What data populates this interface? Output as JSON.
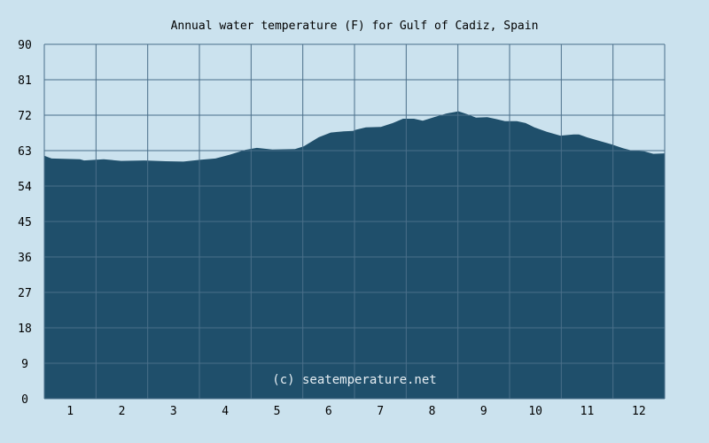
{
  "chart_data": {
    "type": "area",
    "title": "Annual water temperature (F) for Gulf of Cadiz, Spain",
    "xlabel": "",
    "ylabel": "",
    "watermark": "(c) seatemperature.net",
    "xlim": [
      0.5,
      12.5
    ],
    "ylim": [
      0,
      90
    ],
    "grid": true,
    "x_ticks": [
      "1",
      "2",
      "3",
      "4",
      "5",
      "6",
      "7",
      "8",
      "9",
      "10",
      "11",
      "12"
    ],
    "y_ticks": [
      "0",
      "9",
      "18",
      "27",
      "36",
      "45",
      "54",
      "63",
      "72",
      "81",
      "90"
    ],
    "colors": {
      "background": "#cbe2ee",
      "fill": "#1f4f6b",
      "grid": "#4a6f8a",
      "watermark": "#e6eef3"
    },
    "series": [
      {
        "name": "Water temperature (F)",
        "x": [
          0.5,
          0.52,
          0.64,
          1.19,
          1.27,
          1.65,
          1.99,
          2.44,
          2.85,
          3.19,
          3.53,
          3.81,
          4.1,
          4.39,
          4.61,
          4.91,
          5.35,
          5.52,
          5.81,
          6.04,
          6.29,
          6.47,
          6.53,
          6.72,
          7.01,
          7.24,
          7.44,
          7.65,
          7.82,
          8.04,
          8.27,
          8.51,
          8.69,
          8.85,
          9.07,
          9.24,
          9.41,
          9.64,
          9.81,
          9.98,
          10.22,
          10.48,
          10.74,
          10.84,
          11.01,
          11.25,
          11.47,
          11.69,
          11.87,
          12.11,
          12.28,
          12.5
        ],
        "values": [
          61.7,
          61.6,
          61.0,
          60.8,
          60.5,
          60.8,
          60.4,
          60.5,
          60.3,
          60.2,
          60.7,
          61.0,
          62.0,
          63.2,
          63.7,
          63.3,
          63.4,
          64.1,
          66.4,
          67.6,
          67.9,
          68.0,
          68.3,
          68.9,
          69.0,
          70.0,
          71.1,
          71.1,
          70.6,
          71.5,
          72.4,
          73.0,
          72.2,
          71.4,
          71.5,
          71.0,
          70.5,
          70.5,
          70.0,
          68.9,
          67.8,
          66.8,
          67.1,
          67.1,
          66.3,
          65.4,
          64.6,
          63.6,
          63.0,
          62.8,
          62.2,
          62.3
        ]
      }
    ]
  }
}
